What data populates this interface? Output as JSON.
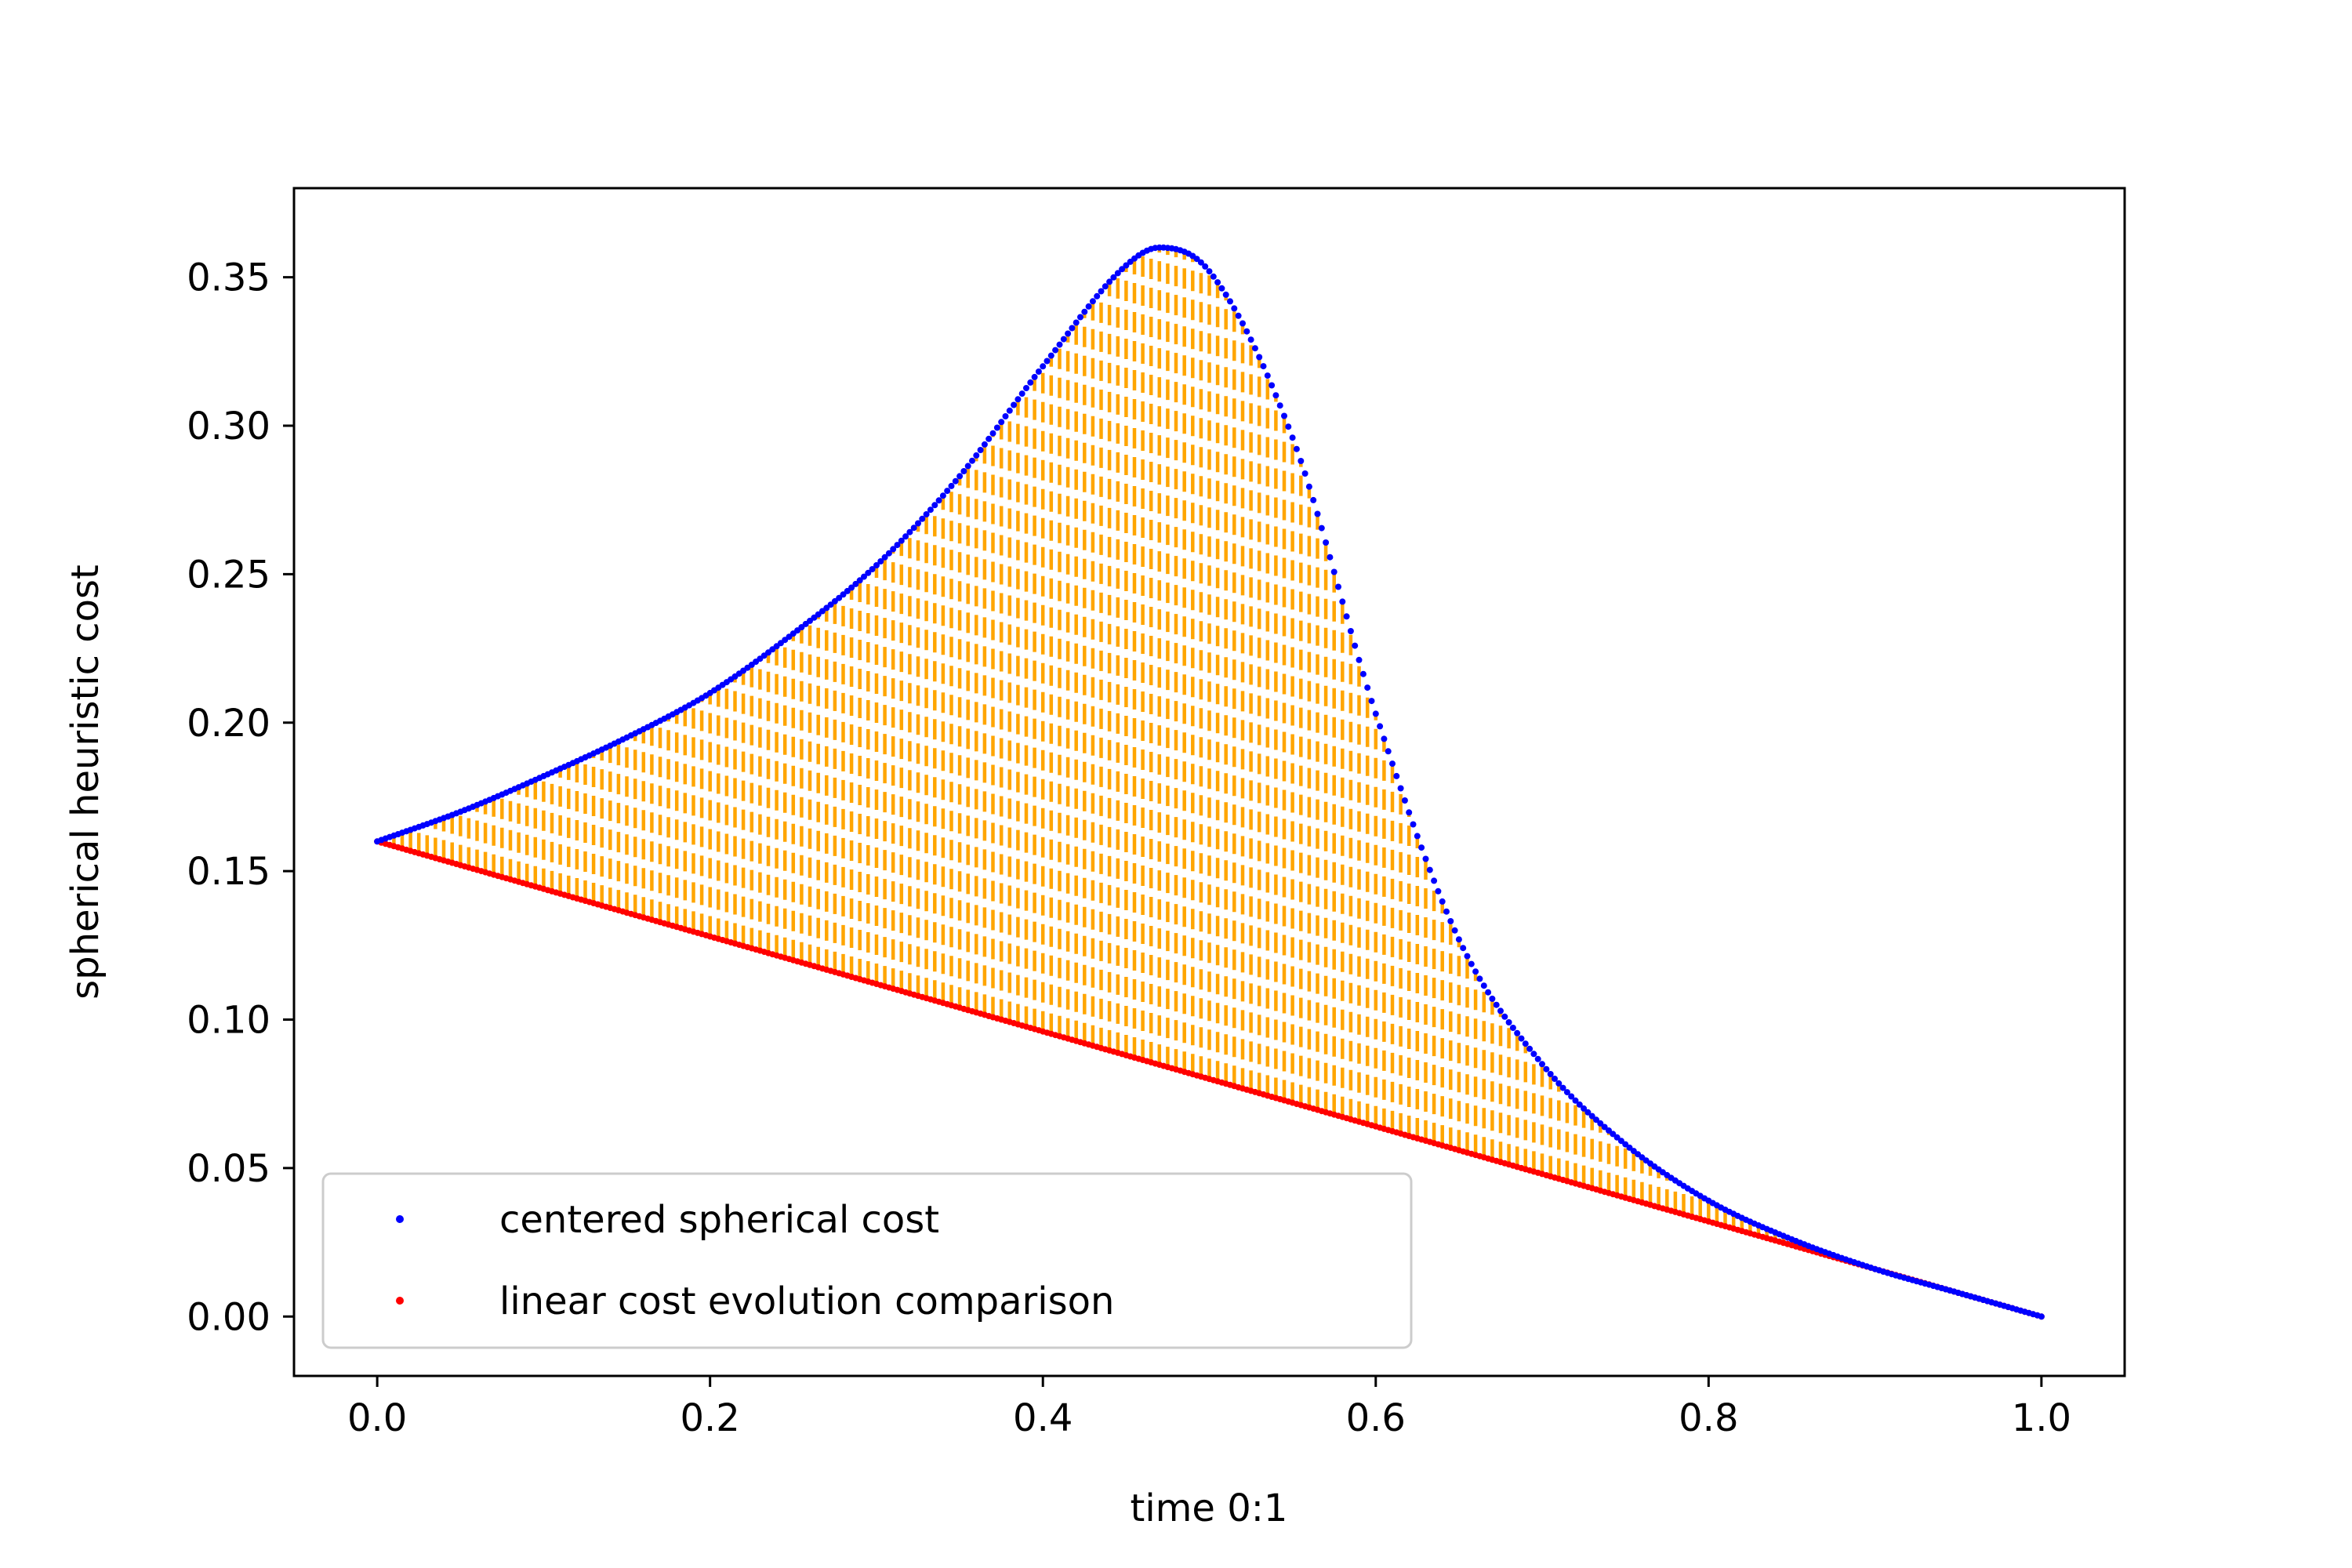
{
  "chart_data": {
    "type": "scatter",
    "title": "",
    "xlabel": "time 0:1",
    "ylabel": "spherical heuristic cost",
    "xlim": [
      -0.05,
      1.05
    ],
    "ylim": [
      -0.02,
      0.38
    ],
    "xticks": [
      "0.0",
      "0.2",
      "0.4",
      "0.6",
      "0.8",
      "1.0"
    ],
    "yticks": [
      "0.00",
      "0.05",
      "0.10",
      "0.15",
      "0.20",
      "0.25",
      "0.30",
      "0.35"
    ],
    "grid": false,
    "legend_position": "lower-left",
    "fill_between": {
      "color": "#ffa500",
      "style": "dashed-vertical"
    },
    "series": [
      {
        "name": "centered spherical cost",
        "color": "#0000ff",
        "marker": "point",
        "x": [
          0.0,
          0.05,
          0.1,
          0.15,
          0.2,
          0.25,
          0.3,
          0.35,
          0.4,
          0.45,
          0.47,
          0.5,
          0.55,
          0.6,
          0.65,
          0.7,
          0.75,
          0.8,
          0.85,
          0.9,
          0.95,
          1.0
        ],
        "y": [
          0.16,
          0.17,
          0.182,
          0.195,
          0.21,
          0.23,
          0.253,
          0.283,
          0.32,
          0.354,
          0.36,
          0.352,
          0.296,
          0.203,
          0.127,
          0.085,
          0.058,
          0.039,
          0.026,
          0.016,
          0.008,
          0.0
        ]
      },
      {
        "name": "linear cost evolution comparison",
        "color": "#ff0000",
        "marker": "point",
        "x": [
          0.0,
          1.0
        ],
        "y": [
          0.16,
          0.0
        ]
      }
    ]
  }
}
